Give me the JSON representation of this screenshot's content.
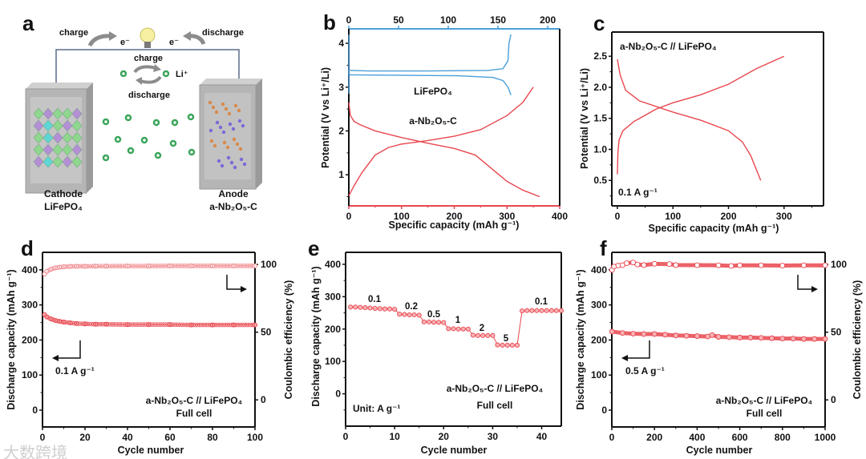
{
  "colors": {
    "red": "#e8474f",
    "blue": "#4a9fd8",
    "pink": "#f08a8f",
    "green": "#3aa55a",
    "slab": "#b5b5b5"
  },
  "watermark": "大数跨境",
  "schematic": {
    "letter": "a",
    "charge_left": "charge",
    "discharge_right": "discharge",
    "electron_left": "e⁻",
    "electron_right": "e⁻",
    "ion_charge": "charge",
    "ion_label": "Li⁺",
    "ion_discharge": "discharge",
    "cathode_title": "Cathode",
    "cathode_material": "LiFePO₄",
    "anode_title": "Anode",
    "anode_material": "a-Nb₂O₅-C",
    "icons": [
      "light-bulb-icon",
      "curved-arrow-icon",
      "cycle-arrows-icon",
      "li-ion-icon"
    ]
  },
  "chart_data": [
    {
      "panel": "b",
      "type": "line",
      "xlabel": "Specific capacity (mAh g⁻¹)",
      "ylabel": "Potential (V vs Li⁺/Li)",
      "xlim": [
        0,
        400
      ],
      "x2lim": [
        0,
        212
      ],
      "ylim": [
        0.29,
        4.33
      ],
      "xticks": [
        0,
        100,
        200,
        300,
        400
      ],
      "x2ticks": [
        0,
        50,
        100,
        150,
        200
      ],
      "yticks": [
        1,
        2,
        3,
        4
      ],
      "annotations": [
        "LiFePO₄",
        "a-Nb₂O₅-C"
      ],
      "series": [
        {
          "name": "a-Nb₂O₅-C charge",
          "axis": "bottom",
          "color": "red",
          "x": [
            0,
            10,
            25,
            50,
            75,
            100,
            150,
            200,
            250,
            300,
            330,
            350
          ],
          "y": [
            0.52,
            0.75,
            1.05,
            1.45,
            1.62,
            1.7,
            1.78,
            1.88,
            2.03,
            2.35,
            2.65,
            3.0
          ]
        },
        {
          "name": "a-Nb₂O₅-C discharge",
          "axis": "bottom",
          "color": "red",
          "x": [
            0,
            3,
            10,
            20,
            50,
            100,
            150,
            200,
            240,
            270,
            300,
            330,
            362
          ],
          "y": [
            2.65,
            2.35,
            2.22,
            2.15,
            2.0,
            1.85,
            1.72,
            1.6,
            1.45,
            1.15,
            0.85,
            0.65,
            0.5
          ]
        },
        {
          "name": "LiFePO₄ charge",
          "axis": "top",
          "color": "blue",
          "x": [
            0,
            0,
            2,
            20,
            80,
            140,
            155,
            160,
            161,
            163
          ],
          "y": [
            2.85,
            3.4,
            3.38,
            3.37,
            3.37,
            3.38,
            3.42,
            3.6,
            4.0,
            4.2
          ]
        },
        {
          "name": "LiFePO₄ discharge",
          "axis": "top",
          "color": "blue",
          "x": [
            0,
            0,
            2,
            50,
            110,
            145,
            155,
            160,
            163
          ],
          "y": [
            4.2,
            3.3,
            3.28,
            3.27,
            3.26,
            3.22,
            3.15,
            3.0,
            2.82
          ]
        }
      ]
    },
    {
      "panel": "c",
      "type": "line",
      "xlabel": "Specific capacity (mAh g⁻¹)",
      "ylabel": "Potential (V vs Li⁺/Li)",
      "xlim": [
        -10,
        371
      ],
      "ylim": [
        0.09,
        2.89
      ],
      "xticks": [
        0,
        100,
        200,
        300
      ],
      "yticks": [
        0.5,
        1.0,
        1.5,
        2.0,
        2.5
      ],
      "annotations": [
        "a-Nb₂O₅-C // LiFePO₄",
        "0.1 A g⁻¹"
      ],
      "series": [
        {
          "name": "charge",
          "color": "red",
          "x": [
            0,
            1,
            3,
            10,
            30,
            70,
            100,
            150,
            200,
            250,
            300
          ],
          "y": [
            0.6,
            0.95,
            1.15,
            1.3,
            1.45,
            1.65,
            1.75,
            1.88,
            2.05,
            2.3,
            2.5
          ]
        },
        {
          "name": "discharge",
          "color": "red",
          "x": [
            0,
            5,
            15,
            40,
            100,
            150,
            200,
            225,
            240,
            258
          ],
          "y": [
            2.45,
            2.2,
            1.95,
            1.78,
            1.6,
            1.47,
            1.3,
            1.12,
            0.9,
            0.5
          ]
        }
      ]
    },
    {
      "panel": "d",
      "type": "scatter",
      "xlabel": "Cycle number",
      "ylabel": "Discharge capacity (mAh g⁻¹)",
      "y2label": "Coulombic efficiency (%)",
      "xlim": [
        0,
        100
      ],
      "ylim": [
        -48,
        450
      ],
      "y2lim": [
        -20,
        109
      ],
      "xticks": [
        0,
        20,
        40,
        60,
        80,
        100
      ],
      "yticks": [
        0,
        100,
        200,
        300,
        400
      ],
      "y2ticks": [
        0,
        50,
        100
      ],
      "annotations": [
        "0.1 A g⁻¹",
        "a-Nb₂O₅-C // LiFePO₄",
        "Full cell"
      ],
      "series": [
        {
          "name": "Discharge capacity",
          "axis": "left",
          "color": "red",
          "x": [
            1,
            2,
            4,
            6,
            8,
            10,
            13,
            16,
            20,
            25,
            30,
            40,
            50,
            60,
            70,
            80,
            90,
            100
          ],
          "y": [
            272,
            266,
            260,
            256,
            253,
            251,
            249,
            247,
            246,
            245,
            245,
            244,
            244,
            244,
            243,
            243,
            243,
            243
          ]
        },
        {
          "name": "Coulombic efficiency",
          "axis": "right",
          "color": "pink",
          "x": [
            1,
            2,
            4,
            6,
            8,
            10,
            13,
            16,
            20,
            25,
            30,
            40,
            50,
            60,
            70,
            80,
            90,
            100
          ],
          "y": [
            93,
            95,
            96.5,
            97.5,
            98,
            98.3,
            98.6,
            98.7,
            98.7,
            98.8,
            98.8,
            98.9,
            98.9,
            99,
            99,
            99,
            99,
            99
          ]
        }
      ]
    },
    {
      "panel": "e",
      "type": "scatter",
      "xlabel": "Cycle number",
      "ylabel": "Discharge capacity (mAh g⁻¹)",
      "xlim": [
        0,
        44
      ],
      "ylim": [
        -100,
        437
      ],
      "xticks": [
        0,
        10,
        20,
        30,
        40
      ],
      "yticks": [
        0,
        100,
        200,
        300,
        400
      ],
      "rate_labels": [
        "0.1",
        "0.2",
        "0.5",
        "1",
        "2",
        "5",
        "0.1"
      ],
      "annotations": [
        "a-Nb₂O₅-C // LiFePO₄",
        "Full cell",
        "Unit: A g⁻¹"
      ],
      "series": [
        {
          "name": "Discharge capacity",
          "color": "red",
          "x": [
            1,
            2,
            3,
            4,
            5,
            6,
            7,
            8,
            9,
            10,
            11,
            12,
            13,
            14,
            15,
            16,
            17,
            18,
            19,
            20,
            21,
            22,
            23,
            24,
            25,
            26,
            27,
            28,
            29,
            30,
            31,
            32,
            33,
            34,
            35,
            36,
            37,
            38,
            39,
            40,
            41,
            42,
            43,
            44
          ],
          "y": [
            268,
            268,
            267,
            266,
            265,
            264,
            263,
            262,
            262,
            261,
            246,
            245,
            244,
            244,
            243,
            222,
            222,
            221,
            221,
            220,
            201,
            201,
            200,
            200,
            200,
            181,
            180,
            180,
            180,
            180,
            151,
            150,
            150,
            150,
            150,
            256,
            257,
            257,
            257,
            257,
            257,
            257,
            257,
            257
          ]
        }
      ]
    },
    {
      "panel": "f",
      "type": "scatter",
      "xlabel": "Cycle number",
      "ylabel": "Discharge capacity (mAh g⁻¹)",
      "y2label": "Coulombic efficiency (%)",
      "xlim": [
        0,
        1000
      ],
      "ylim": [
        -48,
        450
      ],
      "y2lim": [
        -20,
        109
      ],
      "xticks": [
        0,
        200,
        400,
        600,
        800,
        1000
      ],
      "yticks": [
        0,
        100,
        200,
        300,
        400
      ],
      "y2ticks": [
        0,
        50,
        100
      ],
      "annotations": [
        "0.5 A g⁻¹",
        "a-Nb₂O₅-C // LiFePO₄",
        "Full cell"
      ],
      "series": [
        {
          "name": "Discharge capacity",
          "axis": "left",
          "color": "red",
          "x": [
            1,
            50,
            100,
            150,
            200,
            250,
            300,
            350,
            400,
            450,
            470,
            500,
            550,
            600,
            650,
            700,
            750,
            800,
            850,
            900,
            950,
            1000
          ],
          "y": [
            224,
            220,
            218,
            217,
            217,
            215,
            213,
            212,
            211,
            210,
            214,
            209,
            208,
            207,
            207,
            206,
            205,
            204,
            204,
            203,
            203,
            203
          ]
        },
        {
          "name": "Coulombic efficiency",
          "axis": "right",
          "color": "red",
          "x": [
            1,
            10,
            30,
            50,
            70,
            100,
            120,
            150,
            200,
            270,
            300,
            400,
            500,
            560,
            600,
            700,
            800,
            900,
            1000
          ],
          "y": [
            96,
            98.5,
            99.3,
            99.5,
            101,
            101.5,
            100,
            99.6,
            100.5,
            100.3,
            99.6,
            99.5,
            99.4,
            99,
            99.4,
            99.4,
            99.2,
            99.4,
            99.4
          ]
        }
      ]
    }
  ]
}
